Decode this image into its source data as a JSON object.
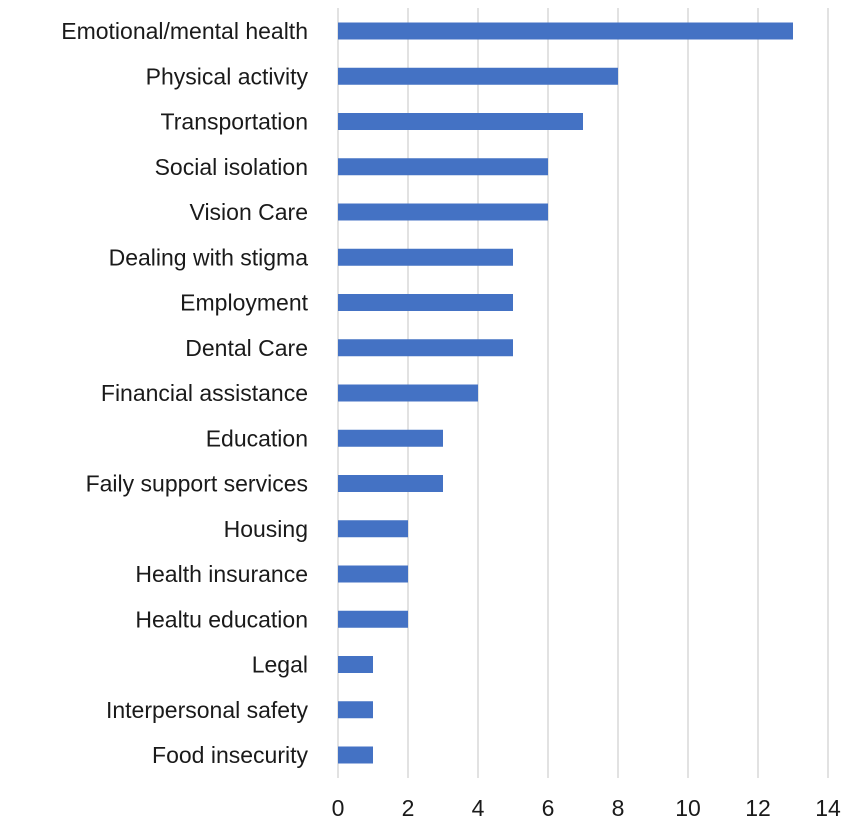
{
  "chart_data": {
    "type": "bar",
    "orientation": "horizontal",
    "title": "",
    "xlabel": "",
    "ylabel": "",
    "categories": [
      "Emotional/mental health",
      "Physical activity",
      "Transportation",
      "Social isolation",
      "Vision Care",
      "Dealing with stigma",
      "Employment",
      "Dental Care",
      "Financial assistance",
      "Education",
      "Faily support services",
      "Housing",
      "Health insurance",
      "Healtu education",
      "Legal",
      "Interpersonal safety",
      "Food insecurity"
    ],
    "values": [
      13,
      8,
      7,
      6,
      6,
      5,
      5,
      5,
      4,
      3,
      3,
      2,
      2,
      2,
      1,
      1,
      1
    ],
    "xlim": [
      0,
      14
    ],
    "xticks": [
      0,
      2,
      4,
      6,
      8,
      10,
      12,
      14
    ],
    "grid": "vertical",
    "legend": "none",
    "bar_color": "#4472C4",
    "grid_color": "#D9D9D9"
  }
}
